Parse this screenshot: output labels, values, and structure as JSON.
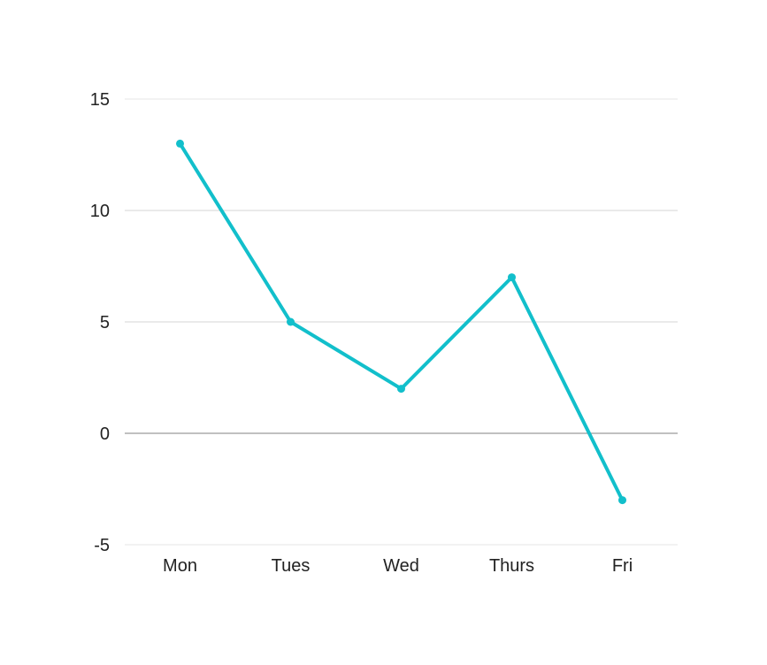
{
  "colors": {
    "series": "#12bfcb",
    "gridline": "#d4d4d4",
    "zeroline": "#9a9a9a",
    "text": "#222222"
  },
  "chart_data": {
    "type": "line",
    "title": "",
    "xlabel": "",
    "ylabel": "",
    "categories": [
      "Mon",
      "Tues",
      "Wed",
      "Thurs",
      "Fri"
    ],
    "series": [
      {
        "values": [
          13,
          5,
          2,
          7,
          -3
        ]
      }
    ],
    "ylim": [
      -5,
      15
    ],
    "yticks": [
      -5,
      0,
      5,
      10,
      15
    ],
    "ytick_labels": [
      "-5",
      "0",
      "5",
      "10",
      "15"
    ],
    "grid": true,
    "legend": "none"
  }
}
